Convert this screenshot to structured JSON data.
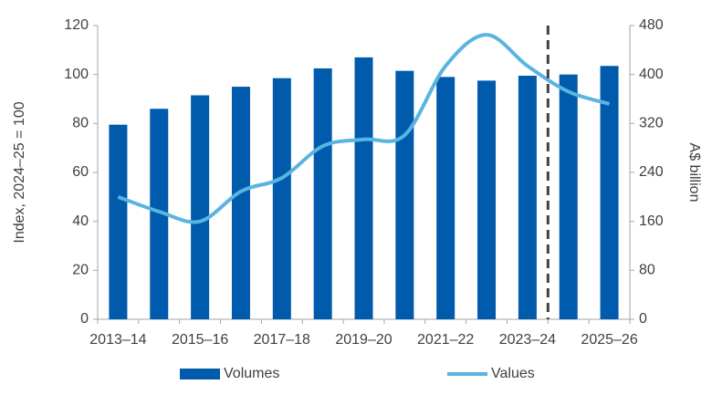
{
  "chart_data": {
    "type": "bar_line",
    "categories": [
      "2013–14",
      null,
      "2015–16",
      null,
      "2017–18",
      null,
      "2019–20",
      null,
      "2021–22",
      null,
      "2023–24",
      null,
      "2025–26"
    ],
    "series": [
      {
        "name": "Volumes",
        "type": "bar",
        "color": "#005bac",
        "axis": "y",
        "values": [
          79.5,
          86,
          91.5,
          95,
          98.5,
          102.5,
          107,
          101.5,
          99,
          97.5,
          99.5,
          100,
          103.5
        ]
      },
      {
        "name": "Values",
        "type": "line",
        "color": "#5ab4e0",
        "axis": "y2",
        "values": [
          200,
          176,
          160,
          209,
          231,
          283,
          294,
          301,
          414,
          465,
          414,
          372,
          352
        ]
      }
    ],
    "ylabel": "Index, 2024–25 = 100",
    "y2label": "A$ billion",
    "ylim": [
      0,
      120
    ],
    "yticks": [
      0,
      20,
      40,
      60,
      80,
      100,
      120
    ],
    "y2lim": [
      0,
      480
    ],
    "y2ticks": [
      0,
      80,
      160,
      240,
      320,
      400,
      480
    ],
    "grid": false,
    "legend": "bottom"
  }
}
